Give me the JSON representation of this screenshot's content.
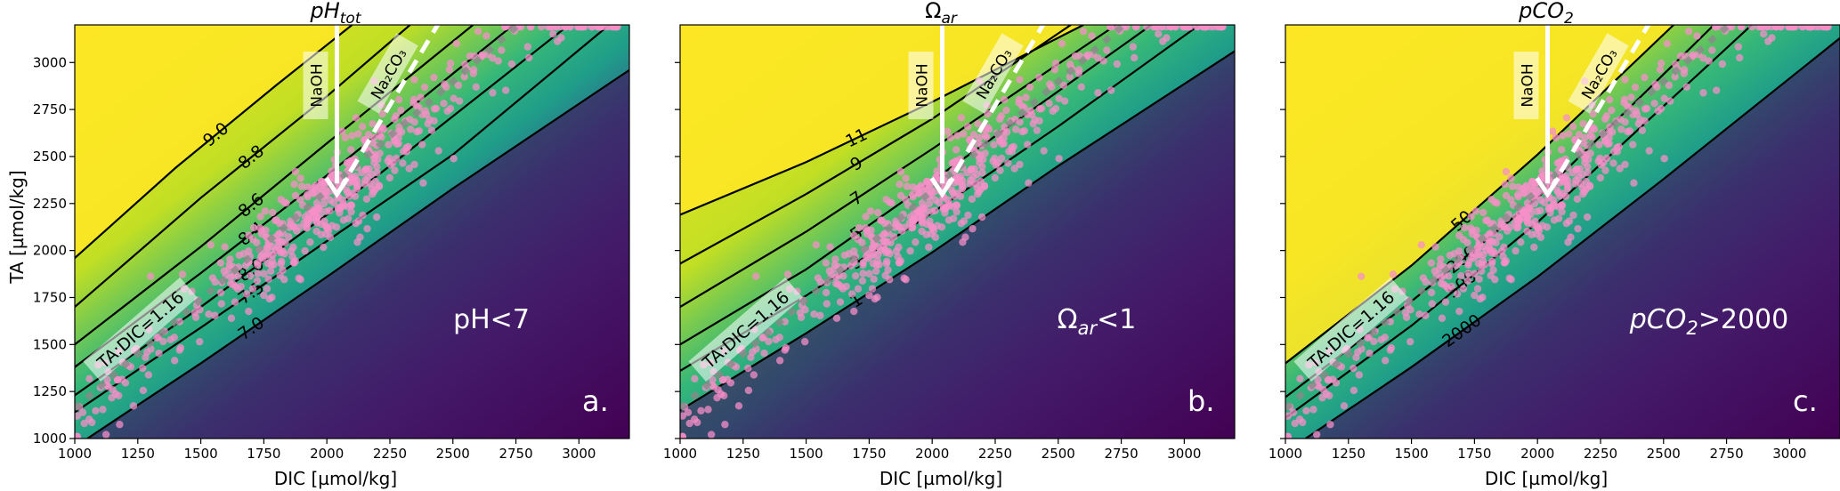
{
  "figure": {
    "panels": [
      {
        "title": "pH",
        "title_sub": "tot",
        "region_label": "pH<7",
        "panel_label": "a.",
        "ylabel": "TA [µmol/kg]",
        "xlabel": "DIC [µmol/kg]",
        "contour_labels": [
          "9.0",
          "8.8",
          "8.6",
          "8.4",
          "8.0",
          "7.5",
          "7.0"
        ]
      },
      {
        "title": "Ω",
        "title_sub": "ar",
        "region_label": "Ω",
        "region_label_sub": "ar",
        "region_label_tail": "<1",
        "panel_label": "b.",
        "xlabel": "DIC [µmol/kg]",
        "contour_labels": [
          "11",
          "9",
          "7",
          "5",
          "3",
          "1"
        ]
      },
      {
        "title": "pCO",
        "title_sub": "2",
        "region_label": "pCO",
        "region_label_sub": "2",
        "region_label_tail": ">2000",
        "panel_label": "c.",
        "xlabel": "DIC [µmol/kg]",
        "contour_labels": [
          "50",
          "200",
          "500",
          "2000"
        ]
      }
    ],
    "annotations": {
      "naoh": "NaOH",
      "na2co3": "Na₂CO₃",
      "ratio": "TA:DIC=1.16"
    },
    "colors": {
      "yellow": "#fde725",
      "green": "#35b779",
      "teal": "#21918c",
      "blue": "#31688e",
      "dark": "#440154",
      "points": "#f78fc8"
    }
  },
  "chart_data": [
    {
      "type": "scatter",
      "title": "pHtot",
      "xlabel": "DIC [µmol/kg]",
      "ylabel": "TA [µmol/kg]",
      "xlim": [
        1000,
        3200
      ],
      "ylim": [
        1000,
        3200
      ],
      "xticks": [
        1000,
        1250,
        1500,
        1750,
        2000,
        2250,
        2500,
        2750,
        3000
      ],
      "yticks": [
        1000,
        1250,
        1500,
        1750,
        2000,
        2250,
        2500,
        2750,
        3000
      ],
      "contours": [
        {
          "label": "9.0",
          "points": [
            [
              1000,
              1960
            ],
            [
              1400,
              2440
            ],
            [
              1800,
              2880
            ],
            [
              2100,
              3200
            ]
          ]
        },
        {
          "label": "8.8",
          "points": [
            [
              1000,
              1700
            ],
            [
              1500,
              2280
            ],
            [
              2000,
              2820
            ],
            [
              2330,
              3200
            ]
          ]
        },
        {
          "label": "8.6",
          "points": [
            [
              1000,
              1500
            ],
            [
              1500,
              2020
            ],
            [
              2000,
              2570
            ],
            [
              2580,
              3200
            ]
          ]
        },
        {
          "label": "8.4",
          "points": [
            [
              1000,
              1380
            ],
            [
              1500,
              1880
            ],
            [
              2000,
              2400
            ],
            [
              2740,
              3200
            ]
          ]
        },
        {
          "label": "8.0",
          "points": [
            [
              1000,
              1230
            ],
            [
              1500,
              1700
            ],
            [
              2000,
              2190
            ],
            [
              2250,
              2450
            ],
            [
              2960,
              3200
            ]
          ]
        },
        {
          "label": "7.5",
          "points": [
            [
              1000,
              1140
            ],
            [
              1500,
              1590
            ],
            [
              2000,
              2050
            ],
            [
              2500,
              2510
            ],
            [
              3120,
              3200
            ]
          ]
        },
        {
          "label": "7.0",
          "points": [
            [
              1050,
              1000
            ],
            [
              1500,
              1400
            ],
            [
              2000,
              1860
            ],
            [
              2500,
              2330
            ],
            [
              3200,
              2960
            ]
          ]
        }
      ],
      "arrows": [
        {
          "label": "NaOH",
          "from": [
            2040,
            3200
          ],
          "to": [
            2040,
            2300
          ]
        },
        {
          "label": "Na₂CO₃",
          "from": [
            2450,
            3200
          ],
          "to": [
            2040,
            2300
          ],
          "dashed": true
        }
      ],
      "region_label": "pH<7"
    },
    {
      "type": "scatter",
      "title": "Ωar",
      "xlabel": "DIC [µmol/kg]",
      "xlim": [
        1000,
        3200
      ],
      "ylim": [
        1000,
        3200
      ],
      "xticks": [
        1000,
        1250,
        1500,
        1750,
        2000,
        2250,
        2500,
        2750,
        3000
      ],
      "contours": [
        {
          "label": "11",
          "points": [
            [
              1000,
              2190
            ],
            [
              1500,
              2470
            ],
            [
              2000,
              2790
            ],
            [
              2600,
              3200
            ]
          ]
        },
        {
          "label": "9",
          "points": [
            [
              1000,
              1930
            ],
            [
              1500,
              2300
            ],
            [
              2000,
              2700
            ],
            [
              2550,
              3200
            ]
          ]
        },
        {
          "label": "7",
          "points": [
            [
              1000,
              1700
            ],
            [
              1500,
              2100
            ],
            [
              2000,
              2540
            ],
            [
              2730,
              3200
            ]
          ]
        },
        {
          "label": "5",
          "points": [
            [
              1000,
              1500
            ],
            [
              1500,
              1900
            ],
            [
              2000,
              2370
            ],
            [
              2870,
              3200
            ]
          ]
        },
        {
          "label": "3",
          "points": [
            [
              1000,
              1360
            ],
            [
              1500,
              1760
            ],
            [
              2000,
              2200
            ],
            [
              2500,
              2660
            ],
            [
              3060,
              3200
            ]
          ]
        },
        {
          "label": "1",
          "points": [
            [
              1000,
              1150
            ],
            [
              1500,
              1560
            ],
            [
              2000,
              1990
            ],
            [
              2500,
              2450
            ],
            [
              3200,
              3060
            ]
          ]
        }
      ],
      "arrows": [
        {
          "label": "NaOH",
          "from": [
            2040,
            3200
          ],
          "to": [
            2040,
            2300
          ]
        },
        {
          "label": "Na₂CO₃",
          "from": [
            2450,
            3200
          ],
          "to": [
            2040,
            2300
          ],
          "dashed": true
        }
      ],
      "region_label": "Ωar<1"
    },
    {
      "type": "scatter",
      "title": "pCO2",
      "xlabel": "DIC [µmol/kg]",
      "xlim": [
        1000,
        3200
      ],
      "ylim": [
        1000,
        3200
      ],
      "xticks": [
        1000,
        1250,
        1500,
        1750,
        2000,
        2250,
        2500,
        2750,
        3000
      ],
      "contours": [
        {
          "label": "50",
          "points": [
            [
              1000,
              1400
            ],
            [
              1500,
              1920
            ],
            [
              2000,
              2510
            ],
            [
              2540,
              3200
            ]
          ]
        },
        {
          "label": "200",
          "points": [
            [
              1000,
              1220
            ],
            [
              1500,
              1730
            ],
            [
              2000,
              2280
            ],
            [
              2700,
              3200
            ]
          ]
        },
        {
          "label": "500",
          "points": [
            [
              1000,
              1110
            ],
            [
              1500,
              1600
            ],
            [
              2000,
              2150
            ],
            [
              2850,
              3200
            ]
          ]
        },
        {
          "label": "2000",
          "points": [
            [
              1080,
              1000
            ],
            [
              1500,
              1380
            ],
            [
              2000,
              1860
            ],
            [
              2500,
              2380
            ],
            [
              3200,
              3130
            ]
          ]
        }
      ],
      "arrows": [
        {
          "label": "NaOH",
          "from": [
            2040,
            3200
          ],
          "to": [
            2040,
            2300
          ]
        },
        {
          "label": "Na₂CO₃",
          "from": [
            2450,
            3200
          ],
          "to": [
            2040,
            2300
          ],
          "dashed": true
        }
      ],
      "region_label": "pCO2>2000"
    }
  ]
}
